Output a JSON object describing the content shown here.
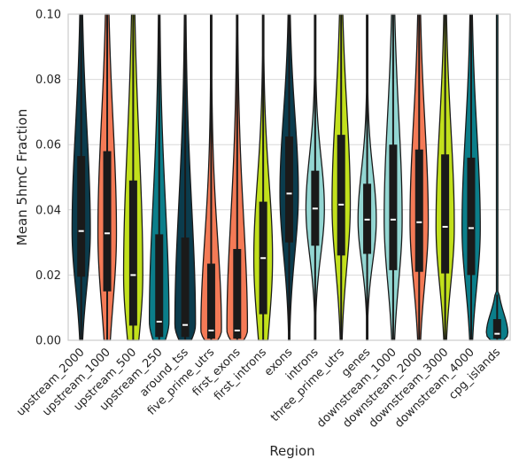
{
  "chart_data": {
    "type": "violin",
    "xlabel": "Region",
    "ylabel": "Mean 5hmC Fraction",
    "ylim": [
      0,
      0.1
    ],
    "yticks": [
      "0.00",
      "0.02",
      "0.04",
      "0.06",
      "0.08",
      "0.10"
    ],
    "grid": true,
    "categories": [
      "upstream_2000",
      "upstream_1000",
      "upstream_500",
      "upstream_250",
      "around_tss",
      "five_prime_utrs",
      "first_exons",
      "first_introns",
      "exons",
      "introns",
      "three_prime_utrs",
      "genes",
      "downstream_1000",
      "downstream_2000",
      "downstream_3000",
      "downstream_4000",
      "cpg_islands"
    ],
    "colors": [
      "#0b3c4d",
      "#f47a56",
      "#c2e01c",
      "#0b7e8a",
      "#0b3c4d",
      "#f47a56",
      "#f47a56",
      "#c2e01c",
      "#0b3c4d",
      "#93d6d2",
      "#c2e01c",
      "#93d6d2",
      "#93d6d2",
      "#f47a56",
      "#c2e01c",
      "#0b7e8a",
      "#0b7e8a"
    ],
    "median": [
      0.0335,
      0.0328,
      0.02,
      0.0057,
      0.0047,
      0.003,
      0.003,
      0.0252,
      0.045,
      0.0404,
      0.0416,
      0.037,
      0.037,
      0.0362,
      0.0348,
      0.0344,
      0.002
    ],
    "q1": [
      0.0195,
      0.015,
      0.0045,
      0.001,
      0.001,
      0.0005,
      0.0005,
      0.008,
      0.03,
      0.029,
      0.026,
      0.0265,
      0.0215,
      0.021,
      0.0205,
      0.02,
      0.0005
    ],
    "q3": [
      0.0565,
      0.058,
      0.049,
      0.0325,
      0.0315,
      0.0235,
      0.028,
      0.0425,
      0.0625,
      0.052,
      0.063,
      0.048,
      0.06,
      0.0585,
      0.057,
      0.056,
      0.0065
    ],
    "whisker_high": [
      0.1,
      0.1,
      0.1,
      0.1,
      0.1,
      0.1,
      0.1,
      0.1,
      0.1,
      0.1,
      0.1,
      0.1,
      0.1,
      0.1,
      0.1,
      0.1,
      0.014
    ],
    "max_halfwidth": [
      0.045,
      0.048,
      0.055,
      0.06,
      0.07,
      0.07,
      0.07,
      0.05,
      0.047,
      0.047,
      0.045,
      0.045,
      0.042,
      0.045,
      0.045,
      0.045,
      0.08
    ]
  }
}
